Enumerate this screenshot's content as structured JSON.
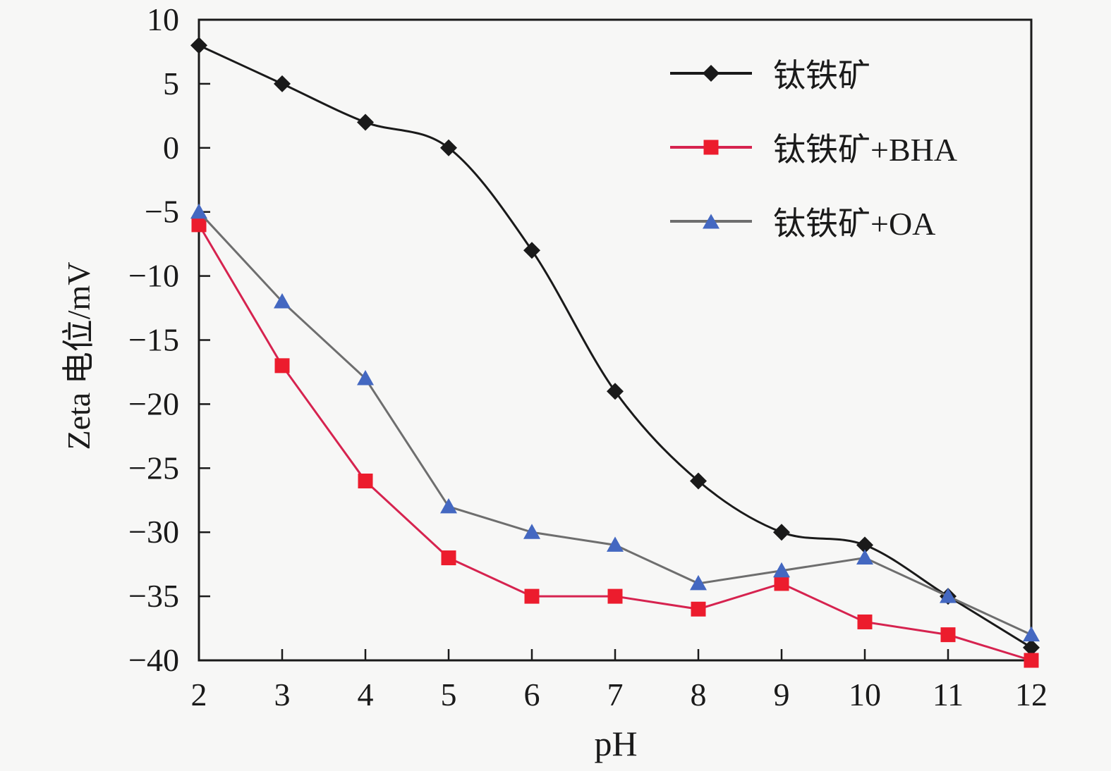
{
  "figure": {
    "background": "#f7f7f6",
    "axis_color": "#1a1a1a",
    "text_color": "#1a1a1a"
  },
  "chart_data": {
    "type": "line",
    "title": "",
    "xlabel": "pH",
    "ylabel": "Zeta 电位/mV",
    "x": [
      2,
      3,
      4,
      5,
      6,
      7,
      8,
      9,
      10,
      11,
      12
    ],
    "xlim": [
      2,
      12
    ],
    "ylim": [
      -40,
      10
    ],
    "xticks": [
      2,
      3,
      4,
      5,
      6,
      7,
      8,
      9,
      10,
      11,
      12
    ],
    "yticks": [
      10,
      5,
      0,
      -5,
      -10,
      -15,
      -20,
      -25,
      -30,
      -35,
      -40
    ],
    "grid": false,
    "legend_position": "upper-right-inside",
    "series": [
      {
        "id": "ilmenite",
        "name": "钛铁矿",
        "marker": "diamond",
        "marker_color": "#1a1a1a",
        "line_color": "#1a1a1a",
        "smooth": true,
        "values": [
          8,
          5,
          2,
          0,
          -8,
          -19,
          -26,
          -30,
          -31,
          -35,
          -39
        ]
      },
      {
        "id": "ilmenite-bha",
        "name": "钛铁矿+BHA",
        "marker": "square",
        "marker_color": "#ec1c2d",
        "line_color": "#d6234f",
        "smooth": false,
        "values": [
          -6,
          -17,
          -26,
          -32,
          -35,
          -35,
          -36,
          -34,
          -37,
          -38,
          -40
        ]
      },
      {
        "id": "ilmenite-oa",
        "name": "钛铁矿+OA",
        "marker": "triangle",
        "marker_color": "#4468c1",
        "line_color": "#6e6e6e",
        "smooth": false,
        "values": [
          -5,
          -12,
          -18,
          -28,
          -30,
          -31,
          -34,
          -33,
          -32,
          -35,
          -38
        ]
      }
    ]
  }
}
